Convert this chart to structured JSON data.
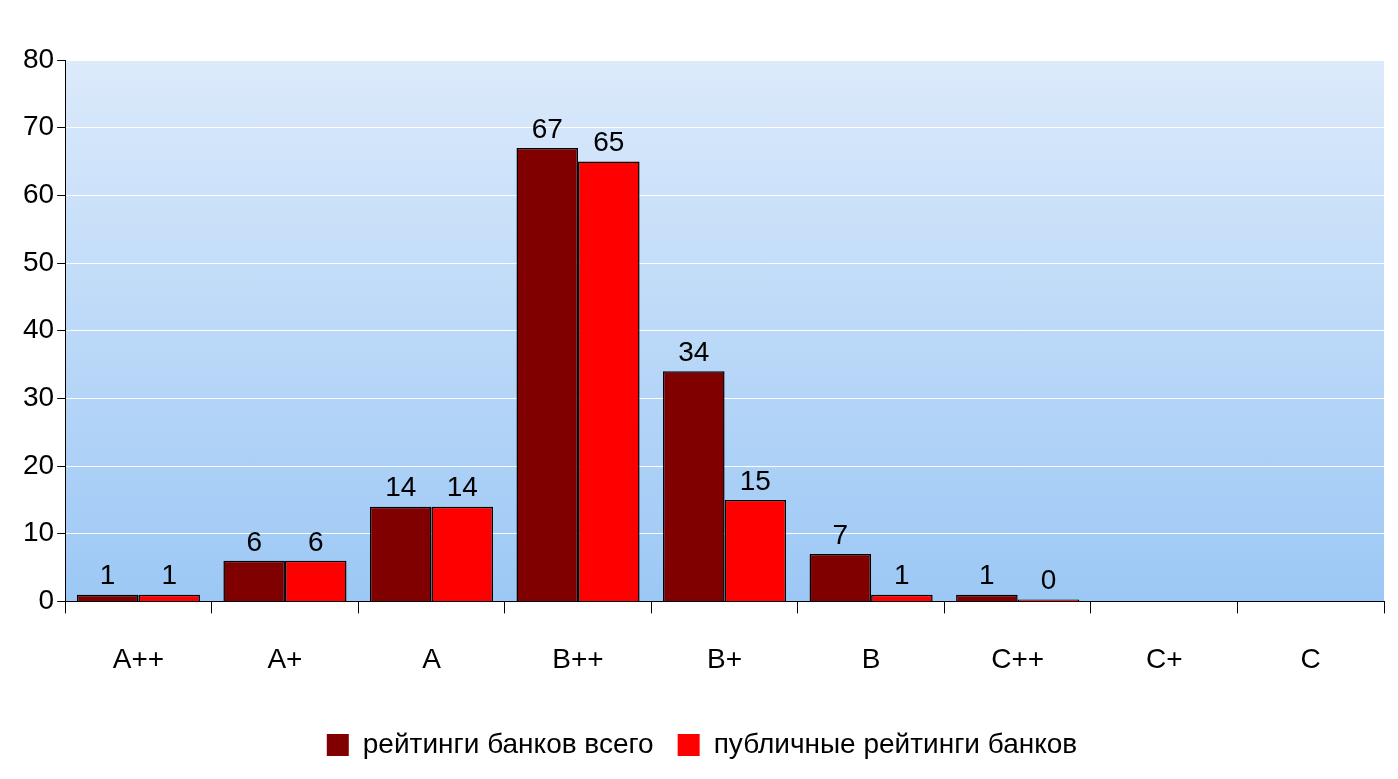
{
  "chart_data": {
    "type": "bar",
    "categories": [
      "A++",
      "A+",
      "A",
      "B++",
      "B+",
      "B",
      "C++",
      "C+",
      "C"
    ],
    "series": [
      {
        "name": "рейтинги банков всего",
        "color": "#800000",
        "values": [
          1,
          6,
          14,
          67,
          34,
          7,
          1,
          null,
          null
        ]
      },
      {
        "name": "публичные рейтинги банков",
        "color": "#ff0000",
        "values": [
          1,
          6,
          14,
          65,
          15,
          1,
          0,
          null,
          null
        ]
      }
    ],
    "ylim": [
      0,
      80
    ],
    "yticks": [
      0,
      10,
      20,
      30,
      40,
      50,
      60,
      70,
      80
    ],
    "grid": "y",
    "legend": "bottom",
    "data_labels": true
  }
}
